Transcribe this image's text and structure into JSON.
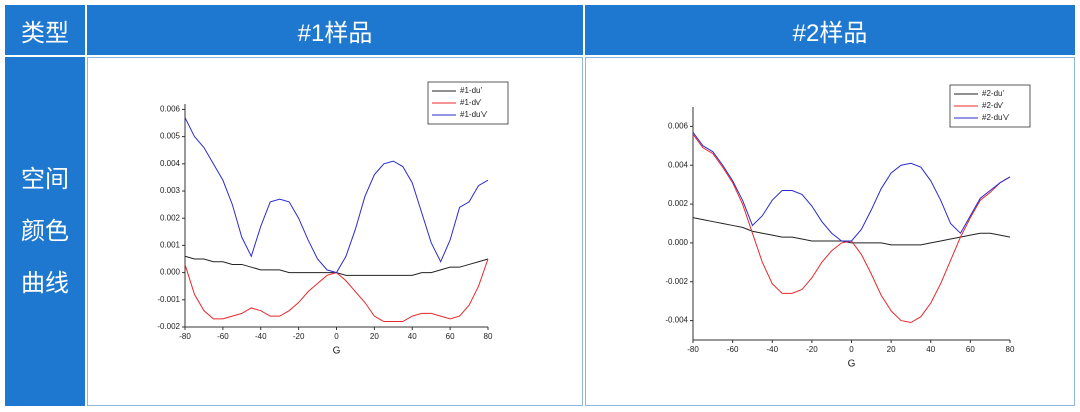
{
  "table": {
    "header": [
      "类型",
      "#1样品",
      "#2样品"
    ],
    "row_label": [
      "空间",
      "颜色",
      "曲线"
    ]
  },
  "chart_data": [
    {
      "type": "line",
      "x_label": "G",
      "legend": "top-right",
      "x": [
        -80,
        -75,
        -70,
        -65,
        -60,
        -55,
        -50,
        -45,
        -40,
        -35,
        -30,
        -25,
        -20,
        -15,
        -10,
        -5,
        0,
        5,
        10,
        15,
        20,
        25,
        30,
        35,
        40,
        45,
        50,
        55,
        60,
        65,
        70,
        75,
        80
      ],
      "xlim": [
        -80,
        80
      ],
      "xticks": [
        -80,
        -60,
        -40,
        -20,
        0,
        20,
        40,
        60,
        80
      ],
      "ylim": [
        -0.002,
        0.0062
      ],
      "yticks": [
        -0.002,
        -0.001,
        {
          "value": 0,
          "label": "0.000"
        },
        0.001,
        0.002,
        0.003,
        0.004,
        0.005,
        0.006
      ],
      "series": [
        {
          "name": "#1-du'",
          "color": "#222222",
          "values": [
            0.0006,
            0.0005,
            0.0005,
            0.0004,
            0.0004,
            0.0003,
            0.0003,
            0.0002,
            0.0001,
            0.0001,
            0.0001,
            0,
            0,
            0,
            0,
            0,
            0,
            -0.0001,
            -0.0001,
            -0.0001,
            -0.0001,
            -0.0001,
            -0.0001,
            -0.0001,
            -0.0001,
            0,
            0,
            0.0001,
            0.0002,
            0.0002,
            0.0003,
            0.0004,
            0.0005
          ]
        },
        {
          "name": "#1-dv'",
          "color": "#e8282b",
          "values": [
            0.0003,
            -0.0008,
            -0.0014,
            -0.0017,
            -0.0017,
            -0.0016,
            -0.0015,
            -0.0013,
            -0.0014,
            -0.0016,
            -0.0016,
            -0.0014,
            -0.0011,
            -0.0007,
            -0.0004,
            -0.0001,
            0,
            -0.0003,
            -0.0007,
            -0.0011,
            -0.0016,
            -0.0018,
            -0.0018,
            -0.0018,
            -0.0016,
            -0.0015,
            -0.0015,
            -0.0016,
            -0.0017,
            -0.0016,
            -0.0012,
            -0.0005,
            0.0005
          ]
        },
        {
          "name": "#1-du'v'",
          "color": "#2b2bd0",
          "values": [
            0.0057,
            0.005,
            0.0046,
            0.004,
            0.0034,
            0.0025,
            0.0013,
            0.0006,
            0.0017,
            0.0026,
            0.0027,
            0.0026,
            0.002,
            0.0012,
            0.0005,
            0.0001,
            0,
            0.0006,
            0.0016,
            0.0028,
            0.0036,
            0.004,
            0.0041,
            0.0039,
            0.0033,
            0.0022,
            0.0011,
            0.0004,
            0.0012,
            0.0024,
            0.0026,
            0.0032,
            0.0034
          ]
        }
      ]
    },
    {
      "type": "line",
      "x_label": "G",
      "legend": "top-right",
      "x": [
        -80,
        -75,
        -70,
        -65,
        -60,
        -55,
        -50,
        -45,
        -40,
        -35,
        -30,
        -25,
        -20,
        -15,
        -10,
        -5,
        0,
        5,
        10,
        15,
        20,
        25,
        30,
        35,
        40,
        45,
        50,
        55,
        60,
        65,
        70,
        75,
        80
      ],
      "xlim": [
        -80,
        80
      ],
      "xticks": [
        -80,
        -60,
        -40,
        -20,
        0,
        20,
        40,
        60,
        80
      ],
      "ylim": [
        -0.005,
        0.007
      ],
      "yticks": [
        -0.004,
        -0.002,
        {
          "value": 0,
          "label": "0.000"
        },
        0.002,
        0.004,
        0.006
      ],
      "series": [
        {
          "name": "#2-du'",
          "color": "#222222",
          "values": [
            0.0013,
            0.0012,
            0.0011,
            0.001,
            0.0009,
            0.0008,
            0.0006,
            0.0005,
            0.0004,
            0.0003,
            0.0003,
            0.0002,
            0.0001,
            0.0001,
            0.0001,
            0.0001,
            0,
            0,
            0,
            0,
            -0.0001,
            -0.0001,
            -0.0001,
            -0.0001,
            0,
            0.0001,
            0.0002,
            0.0003,
            0.0004,
            0.0005,
            0.0005,
            0.0004,
            0.0003
          ]
        },
        {
          "name": "#2-dv'",
          "color": "#e8282b",
          "values": [
            0.0056,
            0.0049,
            0.0046,
            0.0039,
            0.0031,
            0.002,
            0.0005,
            -0.001,
            -0.0021,
            -0.0026,
            -0.0026,
            -0.0024,
            -0.0018,
            -0.001,
            -0.0004,
            0,
            0.0001,
            -0.0006,
            -0.0016,
            -0.0027,
            -0.0035,
            -0.004,
            -0.0041,
            -0.0038,
            -0.0031,
            -0.0021,
            -0.0009,
            0.0003,
            0.0013,
            0.0022,
            0.0026,
            0.0031,
            0.0034
          ]
        },
        {
          "name": "#2-du'v'",
          "color": "#2b2bd0",
          "values": [
            0.0057,
            0.005,
            0.0047,
            0.004,
            0.0032,
            0.0022,
            0.0009,
            0.0014,
            0.0022,
            0.0027,
            0.0027,
            0.0025,
            0.0019,
            0.0011,
            0.0005,
            0.0001,
            0.0001,
            0.0007,
            0.0017,
            0.0028,
            0.0036,
            0.004,
            0.0041,
            0.0039,
            0.0032,
            0.0022,
            0.001,
            0.0005,
            0.0014,
            0.0023,
            0.0027,
            0.0031,
            0.0034
          ]
        }
      ]
    }
  ]
}
